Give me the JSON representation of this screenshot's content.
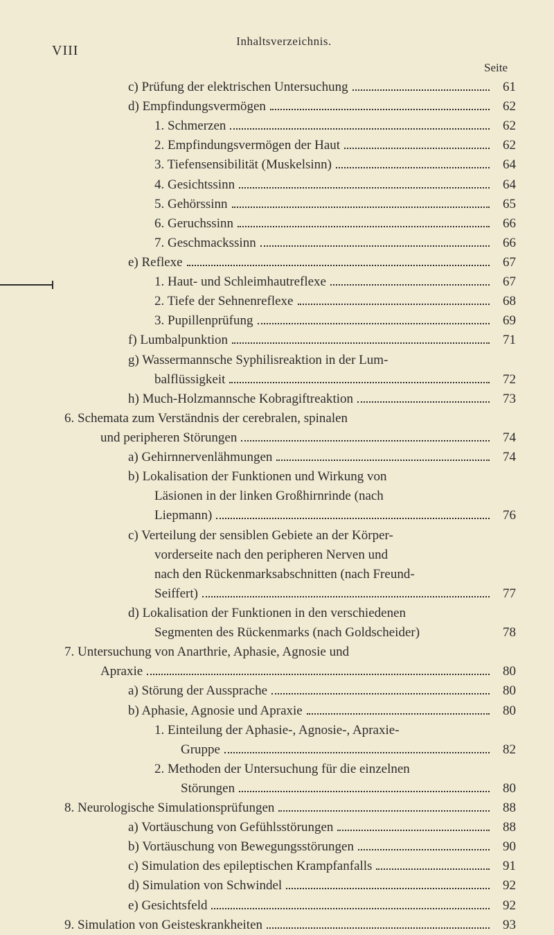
{
  "page": {
    "roman_numeral": "VIII",
    "header": "Inhaltsverzeichnis.",
    "seite_label": "Seite",
    "background_color": "#f2ebd4",
    "text_color": "#2a2a2a",
    "font_family": "Georgia, serif",
    "base_fontsize": 19
  },
  "entries": [
    {
      "indent": 1,
      "text": "c) Prüfung der elektrischen Untersuchung",
      "page": "61"
    },
    {
      "indent": 1,
      "text": "d) Empfindungsvermögen",
      "page": "62"
    },
    {
      "indent": 2,
      "text": "1. Schmerzen",
      "page": "62"
    },
    {
      "indent": 2,
      "text": "2. Empfindungsvermögen der Haut",
      "page": "62"
    },
    {
      "indent": 2,
      "text": "3. Tiefensensibilität (Muskelsinn)",
      "page": "64"
    },
    {
      "indent": 2,
      "text": "4. Gesichtssinn",
      "page": "64"
    },
    {
      "indent": 2,
      "text": "5. Gehörssinn",
      "page": "65"
    },
    {
      "indent": 2,
      "text": "6. Geruchssinn",
      "page": "66"
    },
    {
      "indent": 2,
      "text": "7. Geschmackssinn",
      "page": "66"
    },
    {
      "indent": 1,
      "text": "e) Reflexe",
      "page": "67"
    },
    {
      "indent": 2,
      "text": "1. Haut- und Schleimhautreflexe",
      "page": "67"
    },
    {
      "indent": 2,
      "text": "2. Tiefe der Sehnenreflexe",
      "page": "68"
    },
    {
      "indent": 2,
      "text": "3. Pupillenprüfung",
      "page": "69"
    },
    {
      "indent": 1,
      "text": "f) Lumbalpunktion",
      "page": "71",
      "side_marked": true
    },
    {
      "indent": 1,
      "multiline": true,
      "lines": [
        "g) Wassermannsche Syphilisreaktion in der Lum-",
        "balflüssigkeit"
      ],
      "cont_indent": 148,
      "page": "72"
    },
    {
      "indent": 1,
      "text": "h) Much-Holzmannsche Kobragiftreaktion",
      "page": "73"
    },
    {
      "indent": 0,
      "multiline": true,
      "lines": [
        "6. Schemata zum Verständnis der cerebralen, spinalen",
        "und peripheren Störungen"
      ],
      "cont_indent": 70,
      "page": "74"
    },
    {
      "indent": 1,
      "text": "a) Gehirnnervenlähmungen",
      "page": "74"
    },
    {
      "indent": 1,
      "multiline": true,
      "lines": [
        "b) Lokalisation der Funktionen und Wirkung von",
        "Läsionen in der linken Großhirnrinde (nach",
        "Liepmann)"
      ],
      "cont_indent": 148,
      "page": "76"
    },
    {
      "indent": 1,
      "multiline": true,
      "lines": [
        "c) Verteilung der sensiblen Gebiete an der Körper-",
        "vorderseite nach den peripheren Nerven und",
        "nach den Rückenmarksabschnitten (nach Freund-",
        "Seiffert)"
      ],
      "cont_indent": 148,
      "page": "77"
    },
    {
      "indent": 1,
      "multiline": true,
      "lines": [
        "d) Lokalisation der Funktionen in den verschiedenen",
        "Segmenten des Rückenmarks (nach Goldscheider)"
      ],
      "cont_indent": 148,
      "page": "78",
      "nodots": true
    },
    {
      "indent": 0,
      "multiline": true,
      "lines": [
        "7. Untersuchung von Anarthrie, Aphasie, Agnosie und",
        "Apraxie"
      ],
      "cont_indent": 70,
      "page": "80"
    },
    {
      "indent": 1,
      "text": "a) Störung der Aussprache",
      "page": "80"
    },
    {
      "indent": 1,
      "text": "b) Aphasie, Agnosie und Apraxie",
      "page": "80"
    },
    {
      "indent": 2,
      "multiline": true,
      "lines": [
        "1. Einteilung der Aphasie-, Agnosie-, Apraxie-",
        "Gruppe"
      ],
      "cont_indent": 186,
      "page": "82"
    },
    {
      "indent": 2,
      "multiline": true,
      "lines": [
        "2. Methoden der Untersuchung für die einzelnen",
        "Störungen"
      ],
      "cont_indent": 186,
      "page": "80"
    },
    {
      "indent": 0,
      "text": "8. Neurologische Simulationsprüfungen",
      "page": "88"
    },
    {
      "indent": 1,
      "text": "a) Vortäuschung von Gefühlsstörungen",
      "page": "88"
    },
    {
      "indent": 1,
      "text": "b) Vortäuschung von Bewegungsstörungen",
      "page": "90"
    },
    {
      "indent": 1,
      "text": "c) Simulation des epileptischen Krampfanfalls",
      "page": "91"
    },
    {
      "indent": 1,
      "text": "d) Simulation von Schwindel",
      "page": "92"
    },
    {
      "indent": 1,
      "text": "e) Gesichtsfeld",
      "page": "92"
    },
    {
      "indent": 0,
      "text": "9. Simulation von Geisteskrankheiten",
      "page": "93"
    }
  ]
}
